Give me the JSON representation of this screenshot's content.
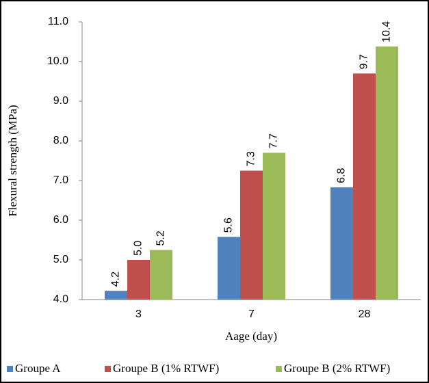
{
  "chart_data": {
    "type": "bar",
    "x_label": "Aage (day)",
    "y_label": "Flexural strength (MPa)",
    "categories": [
      "3",
      "7",
      "28"
    ],
    "series": [
      {
        "name": "Groupe A",
        "color": "#4f81bd",
        "values": [
          4.22,
          5.58,
          6.83
        ],
        "value_labels": [
          "4.2",
          "5.6",
          "6.8"
        ]
      },
      {
        "name": "Groupe B (1% RTWF)",
        "color": "#c0504d",
        "values": [
          5.0,
          7.25,
          9.7
        ],
        "value_labels": [
          "5.0",
          "7.3",
          "9.7"
        ]
      },
      {
        "name": "Groupe B (2% RTWF)",
        "color": "#9bbb59",
        "values": [
          5.25,
          7.7,
          10.38
        ],
        "value_labels": [
          "5.2",
          "7.7",
          "10.4"
        ]
      }
    ],
    "ylim": [
      4,
      11
    ],
    "yticks": [
      {
        "value": 4,
        "label": "4.0"
      },
      {
        "value": 5,
        "label": "5.0"
      },
      {
        "value": 6,
        "label": "6.0"
      },
      {
        "value": 7,
        "label": "7.0"
      },
      {
        "value": 8,
        "label": "8.0"
      },
      {
        "value": 9,
        "label": "9.0"
      },
      {
        "value": 10,
        "label": "10.0"
      },
      {
        "value": 11,
        "label": "11.0"
      }
    ],
    "legend": "bottom",
    "grid": false
  }
}
